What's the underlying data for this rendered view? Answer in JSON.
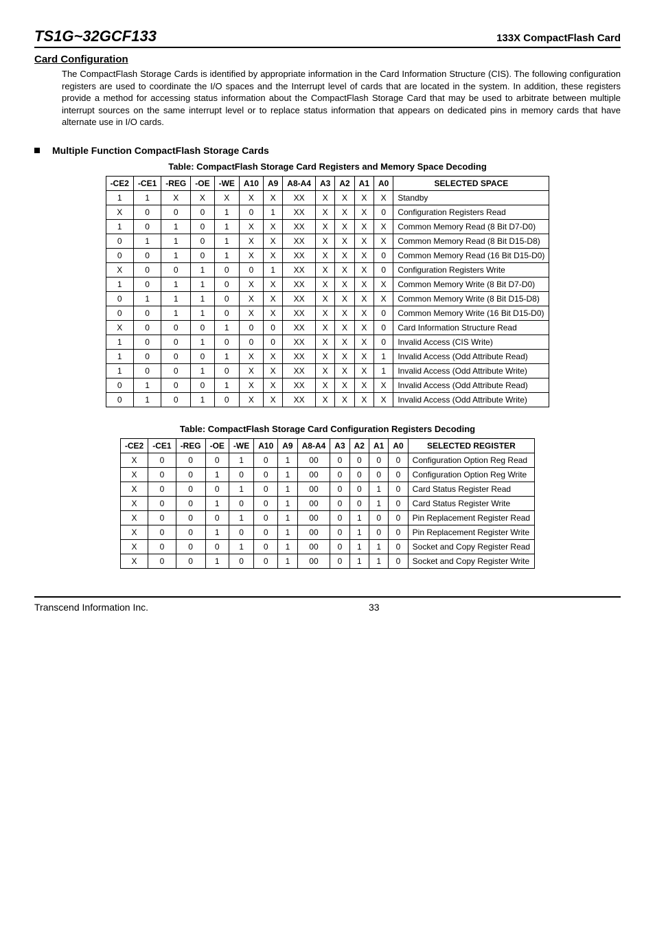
{
  "header": {
    "product_code": "TS1G~32GCF133",
    "product_name": "133X CompactFlash Card"
  },
  "section": {
    "title": "Card Configuration",
    "body": "The CompactFlash Storage Cards is identified by appropriate information in the Card Information Structure (CIS). The following configuration registers are used to coordinate the I/O spaces and the Interrupt level of cards that are located in the system. In addition, these registers provide a method for accessing status information about the CompactFlash Storage Card that may be used to arbitrate between multiple interrupt sources on the same interrupt level or to replace status information that appears on dedicated pins in memory cards that have alternate use in I/O cards."
  },
  "subsection": {
    "title": "Multiple Function CompactFlash  Storage Cards"
  },
  "table1": {
    "caption": "Table: CompactFlash Storage Card Registers and Memory Space Decoding",
    "columns": [
      "-CE2",
      "-CE1",
      "-REG",
      "-OE",
      "-WE",
      "A10",
      "A9",
      "A8-A4",
      "A3",
      "A2",
      "A1",
      "A0",
      "SELECTED SPACE"
    ],
    "rows": [
      [
        "1",
        "1",
        "X",
        "X",
        "X",
        "X",
        "X",
        "XX",
        "X",
        "X",
        "X",
        "X",
        "Standby"
      ],
      [
        "X",
        "0",
        "0",
        "0",
        "1",
        "0",
        "1",
        "XX",
        "X",
        "X",
        "X",
        "0",
        "Configuration Registers Read"
      ],
      [
        "1",
        "0",
        "1",
        "0",
        "1",
        "X",
        "X",
        "XX",
        "X",
        "X",
        "X",
        "X",
        "Common Memory Read (8 Bit D7-D0)"
      ],
      [
        "0",
        "1",
        "1",
        "0",
        "1",
        "X",
        "X",
        "XX",
        "X",
        "X",
        "X",
        "X",
        "Common Memory Read (8 Bit D15-D8)"
      ],
      [
        "0",
        "0",
        "1",
        "0",
        "1",
        "X",
        "X",
        "XX",
        "X",
        "X",
        "X",
        "0",
        "Common Memory Read (16 Bit D15-D0)"
      ],
      [
        "X",
        "0",
        "0",
        "1",
        "0",
        "0",
        "1",
        "XX",
        "X",
        "X",
        "X",
        "0",
        "Configuration Registers Write"
      ],
      [
        "1",
        "0",
        "1",
        "1",
        "0",
        "X",
        "X",
        "XX",
        "X",
        "X",
        "X",
        "X",
        "Common Memory Write (8 Bit D7-D0)"
      ],
      [
        "0",
        "1",
        "1",
        "1",
        "0",
        "X",
        "X",
        "XX",
        "X",
        "X",
        "X",
        "X",
        "Common Memory Write (8 Bit D15-D8)"
      ],
      [
        "0",
        "0",
        "1",
        "1",
        "0",
        "X",
        "X",
        "XX",
        "X",
        "X",
        "X",
        "0",
        "Common Memory Write (16 Bit D15-D0)"
      ],
      [
        "X",
        "0",
        "0",
        "0",
        "1",
        "0",
        "0",
        "XX",
        "X",
        "X",
        "X",
        "0",
        "Card Information Structure Read"
      ],
      [
        "1",
        "0",
        "0",
        "1",
        "0",
        "0",
        "0",
        "XX",
        "X",
        "X",
        "X",
        "0",
        "Invalid Access (CIS Write)"
      ],
      [
        "1",
        "0",
        "0",
        "0",
        "1",
        "X",
        "X",
        "XX",
        "X",
        "X",
        "X",
        "1",
        "Invalid Access (Odd Attribute Read)"
      ],
      [
        "1",
        "0",
        "0",
        "1",
        "0",
        "X",
        "X",
        "XX",
        "X",
        "X",
        "X",
        "1",
        "Invalid Access (Odd Attribute Write)"
      ],
      [
        "0",
        "1",
        "0",
        "0",
        "1",
        "X",
        "X",
        "XX",
        "X",
        "X",
        "X",
        "X",
        "Invalid Access (Odd Attribute Read)"
      ],
      [
        "0",
        "1",
        "0",
        "1",
        "0",
        "X",
        "X",
        "XX",
        "X",
        "X",
        "X",
        "X",
        "Invalid Access (Odd Attribute Write)"
      ]
    ]
  },
  "table2": {
    "caption": "Table: CompactFlash Storage Card Configuration Registers Decoding",
    "columns": [
      "-CE2",
      "-CE1",
      "-REG",
      "-OE",
      "-WE",
      "A10",
      "A9",
      "A8-A4",
      "A3",
      "A2",
      "A1",
      "A0",
      "SELECTED REGISTER"
    ],
    "rows": [
      [
        "X",
        "0",
        "0",
        "0",
        "1",
        "0",
        "1",
        "00",
        "0",
        "0",
        "0",
        "0",
        "Configuration Option Reg Read"
      ],
      [
        "X",
        "0",
        "0",
        "1",
        "0",
        "0",
        "1",
        "00",
        "0",
        "0",
        "0",
        "0",
        "Configuration Option Reg Write"
      ],
      [
        "X",
        "0",
        "0",
        "0",
        "1",
        "0",
        "1",
        "00",
        "0",
        "0",
        "1",
        "0",
        "Card Status Register Read"
      ],
      [
        "X",
        "0",
        "0",
        "1",
        "0",
        "0",
        "1",
        "00",
        "0",
        "0",
        "1",
        "0",
        "Card Status Register Write"
      ],
      [
        "X",
        "0",
        "0",
        "0",
        "1",
        "0",
        "1",
        "00",
        "0",
        "1",
        "0",
        "0",
        "Pin Replacement Register Read"
      ],
      [
        "X",
        "0",
        "0",
        "1",
        "0",
        "0",
        "1",
        "00",
        "0",
        "1",
        "0",
        "0",
        "Pin Replacement Register Write"
      ],
      [
        "X",
        "0",
        "0",
        "0",
        "1",
        "0",
        "1",
        "00",
        "0",
        "1",
        "1",
        "0",
        "Socket and Copy Register Read"
      ],
      [
        "X",
        "0",
        "0",
        "1",
        "0",
        "0",
        "1",
        "00",
        "0",
        "1",
        "1",
        "0",
        "Socket and Copy Register Write"
      ]
    ]
  },
  "footer": {
    "company": "Transcend Information Inc.",
    "page": "33"
  }
}
